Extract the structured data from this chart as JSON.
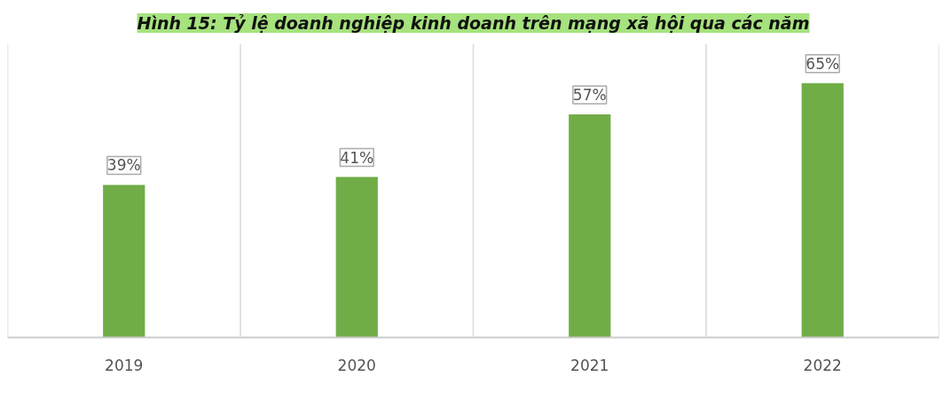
{
  "chart_data": {
    "type": "bar",
    "title": "Hình 15: Tỷ lệ doanh nghiệp kinh doanh trên mạng xã hội qua các năm",
    "categories": [
      "2019",
      "2020",
      "2021",
      "2022"
    ],
    "values": [
      39,
      41,
      57,
      65
    ],
    "value_labels": [
      "39%",
      "41%",
      "57%",
      "65%"
    ],
    "color": "#70ad47",
    "ylim": [
      0,
      75
    ],
    "tick_labels": "x",
    "grid": "x"
  }
}
